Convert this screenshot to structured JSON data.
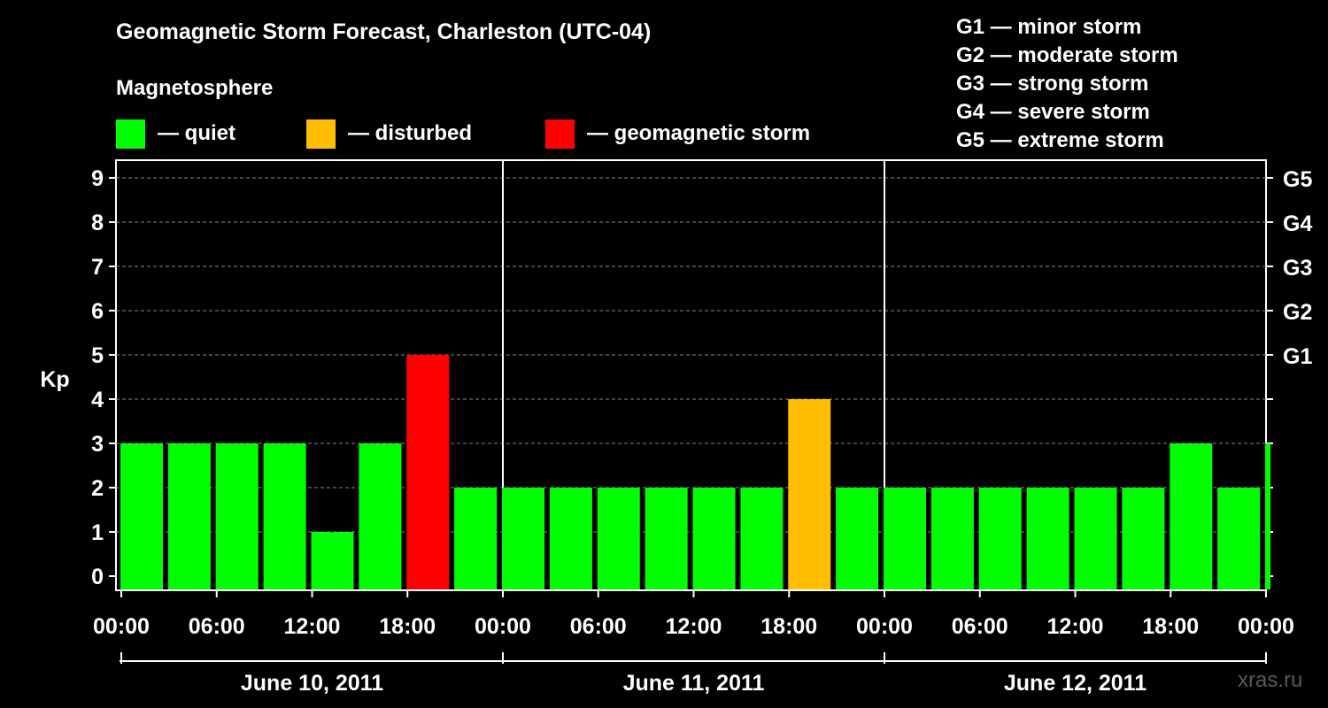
{
  "chart_data": {
    "type": "bar",
    "title": "Geomagnetic Storm Forecast, Charleston (UTC-04)",
    "ylabel": "Kp",
    "ylim": [
      0,
      9
    ],
    "yticks": [
      "0",
      "1",
      "2",
      "3",
      "4",
      "5",
      "6",
      "7",
      "8",
      "9"
    ],
    "right_ticks": [
      {
        "kp": 5,
        "label": "G1"
      },
      {
        "kp": 6,
        "label": "G2"
      },
      {
        "kp": 7,
        "label": "G3"
      },
      {
        "kp": 8,
        "label": "G4"
      },
      {
        "kp": 9,
        "label": "G5"
      }
    ],
    "xticks": [
      "00:00",
      "06:00",
      "12:00",
      "18:00",
      "00:00",
      "06:00",
      "12:00",
      "18:00",
      "00:00",
      "06:00",
      "12:00",
      "18:00",
      "00:00"
    ],
    "days": [
      "June 10, 2011",
      "June 11, 2011",
      "June 12, 2011"
    ],
    "bar_interval_hours": 3,
    "values": [
      3,
      3,
      3,
      3,
      1,
      3,
      5,
      2,
      2,
      2,
      2,
      2,
      2,
      2,
      4,
      2,
      2,
      2,
      2,
      2,
      2,
      2,
      3,
      2,
      3
    ],
    "gridlines": true,
    "watermark": "xras.ru"
  },
  "legend": {
    "heading": "Magnetosphere",
    "items": [
      {
        "label": "— quiet",
        "color": "#00ff00"
      },
      {
        "label": "— disturbed",
        "color": "#ffbf00"
      },
      {
        "label": "— geomagnetic storm",
        "color": "#ff0000"
      }
    ]
  },
  "scale": [
    "G1 — minor storm",
    "G2 — moderate storm",
    "G3 — strong storm",
    "G4 — severe storm",
    "G5 — extreme storm"
  ],
  "colors": {
    "quiet": "#00ff00",
    "disturbed": "#ffbf00",
    "storm": "#ff0000",
    "background": "#000000",
    "axis": "#ffffff",
    "grid": "#888888"
  }
}
